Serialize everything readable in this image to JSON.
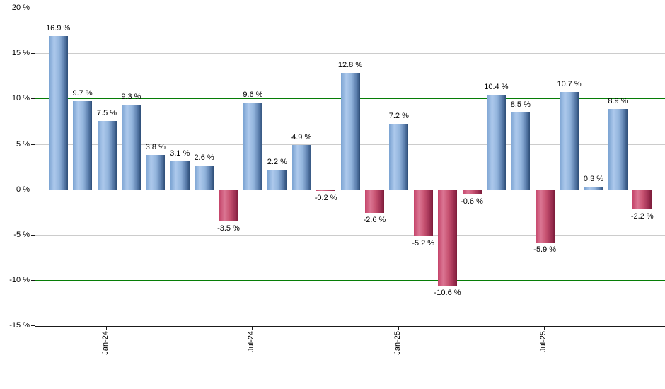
{
  "chart_data": {
    "type": "bar",
    "title": "",
    "xlabel": "",
    "ylabel": "",
    "ylim": [
      -15,
      20
    ],
    "grid": true,
    "legend": "none",
    "values": [
      16.9,
      9.7,
      7.5,
      9.3,
      3.8,
      3.1,
      2.6,
      -3.5,
      9.6,
      2.2,
      4.9,
      -0.2,
      12.8,
      -2.6,
      7.2,
      -5.2,
      -10.6,
      -0.6,
      10.4,
      8.5,
      -5.9,
      10.7,
      0.3,
      8.9,
      -2.2
    ],
    "bar_labels": [
      "16.9 %",
      "9.7 %",
      "7.5 %",
      "9.3 %",
      "3.8 %",
      "3.1 %",
      "2.6 %",
      "-3.5 %",
      "9.6 %",
      "2.2 %",
      "4.9 %",
      "-0.2 %",
      "12.8 %",
      "-2.6 %",
      "7.2 %",
      "-5.2 %",
      "-10.6 %",
      "-0.6 %",
      "10.4 %",
      "8.5 %",
      "-5.9 %",
      "10.7 %",
      "0.3 %",
      "8.9 %",
      "-2.2 %"
    ],
    "y_ticks": [
      {
        "value": 20,
        "label": "20 %"
      },
      {
        "value": 15,
        "label": "15 %"
      },
      {
        "value": 10,
        "label": "10 %"
      },
      {
        "value": 5,
        "label": "5 %"
      },
      {
        "value": 0,
        "label": "0 %"
      },
      {
        "value": -5,
        "label": "-5 %"
      },
      {
        "value": -10,
        "label": "-10 %"
      },
      {
        "value": -15,
        "label": "-15 %"
      }
    ],
    "x_ticks": [
      {
        "bar_index": 2,
        "label": "Jan-24"
      },
      {
        "bar_index": 8,
        "label": "Jul-24"
      },
      {
        "bar_index": 14,
        "label": "Jan-25"
      },
      {
        "bar_index": 20,
        "label": "Jul-25"
      }
    ],
    "highlight_gridline_values": [
      10,
      -10
    ],
    "colors": {
      "positive_bar_light": "#adc9ec",
      "positive_bar_dark": "#2e4e78",
      "negative_bar_light": "#db7693",
      "negative_bar_dark": "#7c1c3a",
      "gridline": "#cccccc",
      "highlight_gridline": "#067d06",
      "axis": "#1a1a1a",
      "label_text": "#000000",
      "background": "#ffffff"
    }
  }
}
